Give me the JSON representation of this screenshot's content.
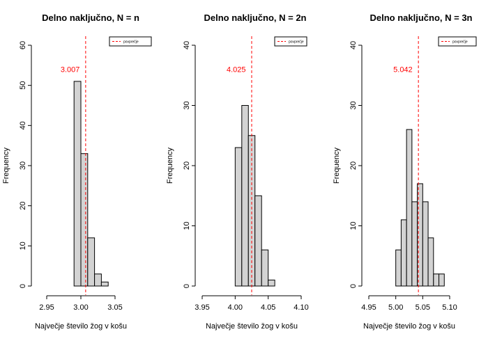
{
  "colors": {
    "bar_fill": "#d3d3d3",
    "bar_stroke": "#000000",
    "mean_line": "#ff0000"
  },
  "chart_data": [
    {
      "type": "bar",
      "title": "Delno naključno, N = n",
      "xlabel": "Največje število žog v košu",
      "ylabel": "Frequency",
      "xlim": [
        2.95,
        3.05
      ],
      "ylim": [
        0,
        60
      ],
      "xticks": [
        "2.95",
        "3.00",
        "3.05"
      ],
      "yticks": [
        "0",
        "10",
        "20",
        "30",
        "40",
        "50",
        "60"
      ],
      "bin_width": 0.01,
      "bins": [
        {
          "x0": 2.99,
          "x1": 3.0,
          "count": 51
        },
        {
          "x0": 3.0,
          "x1": 3.01,
          "count": 33
        },
        {
          "x0": 3.01,
          "x1": 3.02,
          "count": 12
        },
        {
          "x0": 3.02,
          "x1": 3.03,
          "count": 3
        },
        {
          "x0": 3.03,
          "x1": 3.04,
          "count": 1
        }
      ],
      "mean": 3.007,
      "mean_label": "3.007",
      "legend": {
        "label": "povprečje",
        "position": "top-right"
      }
    },
    {
      "type": "bar",
      "title": "Delno naključno, N = 2n",
      "xlabel": "Največje število žog v košu",
      "ylabel": "Frequency",
      "xlim": [
        3.95,
        4.1
      ],
      "ylim": [
        0,
        40
      ],
      "xticks": [
        "3.95",
        "4.00",
        "4.05",
        "4.10"
      ],
      "yticks": [
        "0",
        "10",
        "20",
        "30",
        "40"
      ],
      "bin_width": 0.01,
      "bins": [
        {
          "x0": 4.0,
          "x1": 4.01,
          "count": 23
        },
        {
          "x0": 4.01,
          "x1": 4.02,
          "count": 30
        },
        {
          "x0": 4.02,
          "x1": 4.03,
          "count": 25
        },
        {
          "x0": 4.03,
          "x1": 4.04,
          "count": 15
        },
        {
          "x0": 4.04,
          "x1": 4.05,
          "count": 6
        },
        {
          "x0": 4.05,
          "x1": 4.06,
          "count": 1
        }
      ],
      "mean": 4.025,
      "mean_label": "4.025",
      "legend": {
        "label": "povprečje",
        "position": "top-right"
      }
    },
    {
      "type": "bar",
      "title": "Delno naključno, N = 3n",
      "xlabel": "Največje število žog v košu",
      "ylabel": "Frequency",
      "xlim": [
        4.95,
        5.1
      ],
      "ylim": [
        0,
        40
      ],
      "xticks": [
        "4.95",
        "5.00",
        "5.05",
        "5.10"
      ],
      "yticks": [
        "0",
        "10",
        "20",
        "30",
        "40"
      ],
      "bin_width": 0.01,
      "bins": [
        {
          "x0": 5.0,
          "x1": 5.01,
          "count": 6
        },
        {
          "x0": 5.01,
          "x1": 5.02,
          "count": 11
        },
        {
          "x0": 5.02,
          "x1": 5.03,
          "count": 26
        },
        {
          "x0": 5.03,
          "x1": 5.04,
          "count": 14
        },
        {
          "x0": 5.04,
          "x1": 5.05,
          "count": 17
        },
        {
          "x0": 5.05,
          "x1": 5.06,
          "count": 14
        },
        {
          "x0": 5.06,
          "x1": 5.07,
          "count": 8
        },
        {
          "x0": 5.07,
          "x1": 5.08,
          "count": 2
        },
        {
          "x0": 5.08,
          "x1": 5.09,
          "count": 2
        }
      ],
      "mean": 5.042,
      "mean_label": "5.042",
      "legend": {
        "label": "povprečje",
        "position": "top-right"
      }
    }
  ]
}
